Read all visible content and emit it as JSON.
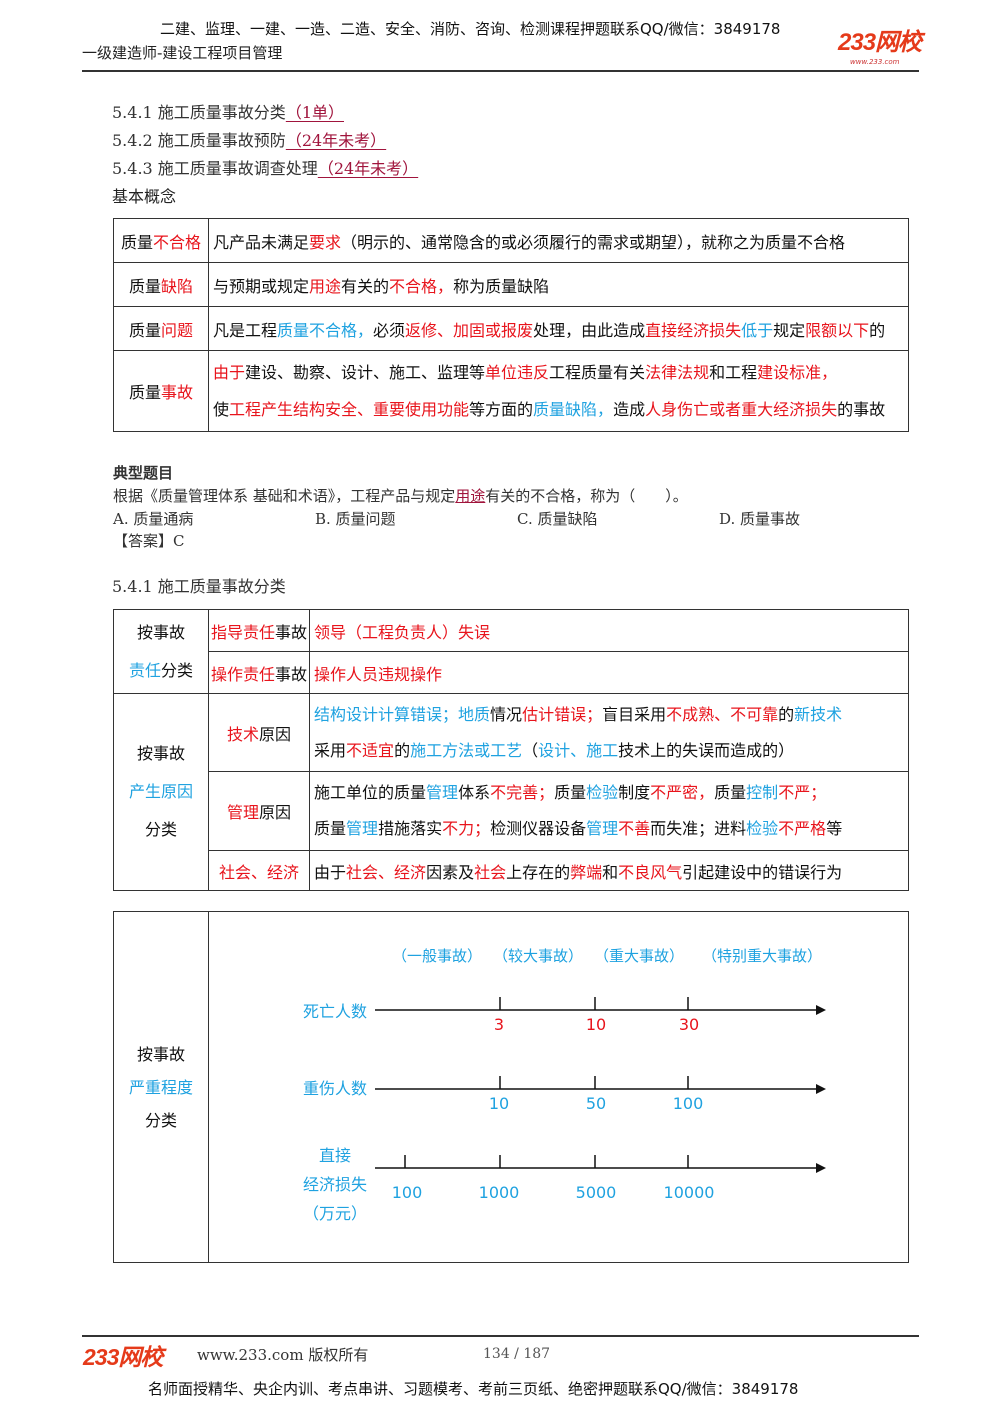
{
  "header": {
    "promo": "二建、监理、一建、一造、二造、安全、消防、咨询、检测课程押题联系QQ/微信：3849178",
    "subtitle": "一级建造师-建设工程项目管理",
    "logo": "233网校",
    "logo_url": "www.233.com"
  },
  "toc": [
    {
      "label": "5.4.1 施工质量事故分类",
      "tag": "（1单）"
    },
    {
      "label": "5.4.2 施工质量事故预防",
      "tag": "（24年未考）"
    },
    {
      "label": "5.4.3 施工质量事故调查处理",
      "tag": "（24年未考）"
    }
  ],
  "basic_heading": "基本概念",
  "colors": {
    "red": "#e8141c",
    "blue": "#1fa2e0",
    "tag": "#a0143c"
  },
  "concepts": [
    {
      "term": [
        [
          "质量",
          "k"
        ],
        [
          "不合格",
          "r"
        ]
      ],
      "lines": [
        [
          [
            "凡产品未满足",
            "k"
          ],
          [
            "要求",
            "r"
          ],
          [
            "（明示的、通常隐含的或必须履行的需求或期望），就称之为质量不合格",
            "k"
          ]
        ]
      ]
    },
    {
      "term": [
        [
          "质量",
          "k"
        ],
        [
          "缺陷",
          "r"
        ]
      ],
      "lines": [
        [
          [
            "与预期或规定",
            "k"
          ],
          [
            "用途",
            "r"
          ],
          [
            "有关的",
            "k"
          ],
          [
            "不合格，",
            "r"
          ],
          [
            "称为质量缺陷",
            "k"
          ]
        ]
      ]
    },
    {
      "term": [
        [
          "质量",
          "k"
        ],
        [
          "问题",
          "r"
        ]
      ],
      "lines": [
        [
          [
            "凡是工程",
            "k"
          ],
          [
            "质量不合格，",
            "b"
          ],
          [
            "必须",
            "k"
          ],
          [
            "返修、加固或报废",
            "r"
          ],
          [
            "处理，由此造成",
            "k"
          ],
          [
            "直接经济损失",
            "r"
          ],
          [
            "低于",
            "b"
          ],
          [
            "规定",
            "k"
          ],
          [
            "限额以下",
            "r"
          ],
          [
            "的",
            "k"
          ]
        ]
      ]
    },
    {
      "term": [
        [
          "质量",
          "k"
        ],
        [
          "事故",
          "r"
        ]
      ],
      "lines": [
        [
          [
            "由于",
            "r"
          ],
          [
            "建设、勘察、设计、施工、监理等",
            "k"
          ],
          [
            "单位违反",
            "r"
          ],
          [
            "工程质量有关",
            "k"
          ],
          [
            "法律法规",
            "r"
          ],
          [
            "和工程",
            "k"
          ],
          [
            "建设标准，",
            "r"
          ]
        ],
        [
          [
            "使",
            "k"
          ],
          [
            "工程产生结构安全、重要使用功能",
            "r"
          ],
          [
            "等方面的",
            "k"
          ],
          [
            "质量缺陷，",
            "b"
          ],
          [
            "造成",
            "k"
          ],
          [
            "人身伤亡或者重大经济损失",
            "r"
          ],
          [
            "的事故",
            "k"
          ]
        ]
      ]
    }
  ],
  "question": {
    "heading": "典型题目",
    "stem_before": "根据《质量管理体系 基础和术语》，工程产品与规定",
    "stem_keyword": "用途",
    "stem_after": "有关的不合格，称为（　　）。",
    "options": [
      "A. 质量通病",
      "B. 质量问题",
      "C. 质量缺陷",
      "D. 质量事故"
    ],
    "answer": "【答案】C"
  },
  "section_title": "5.4.1 施工质量事故分类",
  "classification": {
    "responsibility": {
      "label": [
        [
          "按事故",
          "k"
        ]
      ],
      "label2": [
        [
          "责任",
          "b"
        ],
        [
          "分类",
          "k"
        ]
      ],
      "rows": [
        {
          "type": [
            [
              "指导责任",
              "r"
            ],
            [
              "事故",
              "k"
            ]
          ],
          "desc": [
            [
              "领导（工程负责人）失误",
              "r"
            ]
          ]
        },
        {
          "type": [
            [
              "操作责任",
              "r"
            ],
            [
              "事故",
              "k"
            ]
          ],
          "desc": [
            [
              "操作人员违规操作",
              "r"
            ]
          ]
        }
      ]
    },
    "cause": {
      "label1": "按事故",
      "label2": "产生原因",
      "label3": "分类",
      "rows": [
        {
          "type": [
            [
              "技术",
              "r"
            ],
            [
              "原因",
              "k"
            ]
          ],
          "lines": [
            [
              [
                "结构设计计算错误；地质",
                "b"
              ],
              [
                "情况",
                "k"
              ],
              [
                "估计错误；",
                "r"
              ],
              [
                "盲目采用",
                "k"
              ],
              [
                "不成熟、不可靠",
                "r"
              ],
              [
                "的",
                "k"
              ],
              [
                "新技术",
                "b"
              ]
            ],
            [
              [
                "采用",
                "k"
              ],
              [
                "不适宜",
                "r"
              ],
              [
                "的",
                "k"
              ],
              [
                "施工方法或工艺",
                "b"
              ],
              [
                "（",
                "k"
              ],
              [
                "设计、施工",
                "b"
              ],
              [
                "技术上的失误而造成的）",
                "k"
              ]
            ]
          ]
        },
        {
          "type": [
            [
              "管理",
              "r"
            ],
            [
              "原因",
              "k"
            ]
          ],
          "lines": [
            [
              [
                "施工单位的质量",
                "k"
              ],
              [
                "管理",
                "b"
              ],
              [
                "体系",
                "k"
              ],
              [
                "不完善；",
                "r"
              ],
              [
                "质量",
                "k"
              ],
              [
                "检验",
                "b"
              ],
              [
                "制度",
                "k"
              ],
              [
                "不严密，",
                "r"
              ],
              [
                "质量",
                "k"
              ],
              [
                "控制",
                "b"
              ],
              [
                "不严；",
                "r"
              ]
            ],
            [
              [
                "质量",
                "k"
              ],
              [
                "管理",
                "b"
              ],
              [
                "措施落实",
                "k"
              ],
              [
                "不力；",
                "r"
              ],
              [
                "检测仪器设备",
                "k"
              ],
              [
                "管理",
                "b"
              ],
              [
                "不善",
                "r"
              ],
              [
                "而失准；进料",
                "k"
              ],
              [
                "检验",
                "b"
              ],
              [
                "不严格",
                "r"
              ],
              [
                "等",
                "k"
              ]
            ]
          ]
        },
        {
          "type": [
            [
              "社会、经济",
              "r"
            ]
          ],
          "lines": [
            [
              [
                "由于",
                "k"
              ],
              [
                "社会、经济",
                "r"
              ],
              [
                "因素及",
                "k"
              ],
              [
                "社会",
                "r"
              ],
              [
                "上存在的",
                "k"
              ],
              [
                "弊端",
                "r"
              ],
              [
                "和",
                "k"
              ],
              [
                "不良风气",
                "r"
              ],
              [
                "引起建设中的错误行为",
                "k"
              ]
            ]
          ]
        }
      ]
    },
    "severity": {
      "label1": "按事故",
      "label2": "严重程度",
      "label3": "分类",
      "levels": [
        "（一般事故）",
        "（较大事故）",
        "（重大事故）",
        "（特别重大事故）"
      ],
      "axes": [
        {
          "label": [
            "死亡人数"
          ],
          "ticks": [
            "3",
            "10",
            "30"
          ]
        },
        {
          "label": [
            "重伤人数"
          ],
          "ticks": [
            "10",
            "50",
            "100"
          ]
        },
        {
          "label": [
            "直接",
            "经济损失",
            "（万元）"
          ],
          "ticks": [
            "100",
            "1000",
            "5000",
            "10000"
          ]
        }
      ]
    }
  },
  "footer": {
    "logo": "233网校",
    "site": "www.233.com 版权所有",
    "page": "134 / 187",
    "promo": "名师面授精华、央企内训、考点串讲、习题模考、考前三页纸、绝密押题联系QQ/微信：3849178"
  }
}
